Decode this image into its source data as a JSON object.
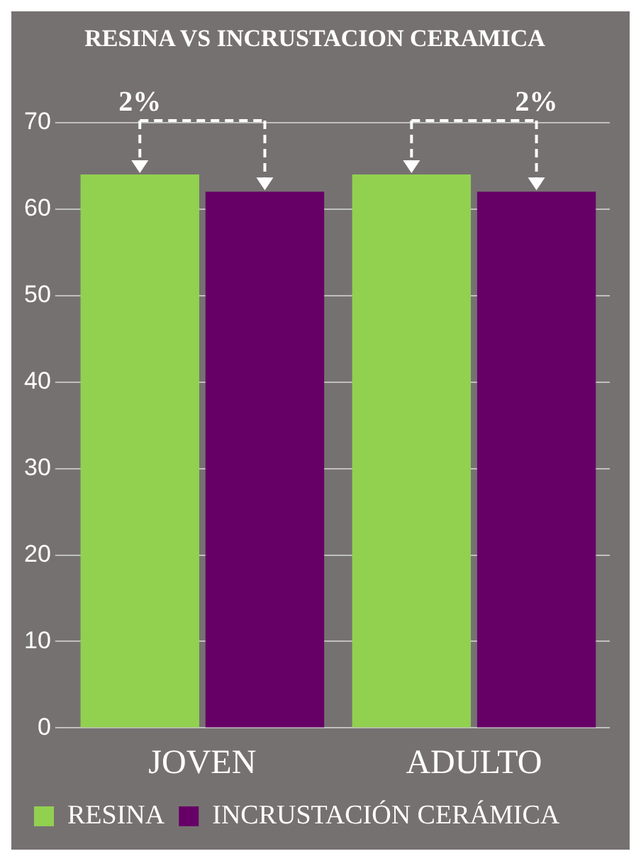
{
  "chart_data": {
    "type": "bar",
    "title": "RESINA VS INCRUSTACION CERAMICA",
    "categories": [
      "JOVEN",
      "ADULTO"
    ],
    "series": [
      {
        "name": "RESINA",
        "color": "#92d050",
        "values": [
          64,
          64
        ]
      },
      {
        "name": "INCRUSTACIÓN CERÁMICA",
        "color": "#660066",
        "values": [
          62,
          62
        ]
      }
    ],
    "ylim": [
      0,
      70
    ],
    "yticks": [
      0,
      10,
      20,
      30,
      40,
      50,
      60,
      70
    ],
    "grid": "y",
    "legend": "bottom",
    "annotations": [
      {
        "text": "2%",
        "x": "JOVEN",
        "y": 64
      },
      {
        "text": "2%",
        "x": "ADULTO",
        "y": 64
      }
    ]
  }
}
